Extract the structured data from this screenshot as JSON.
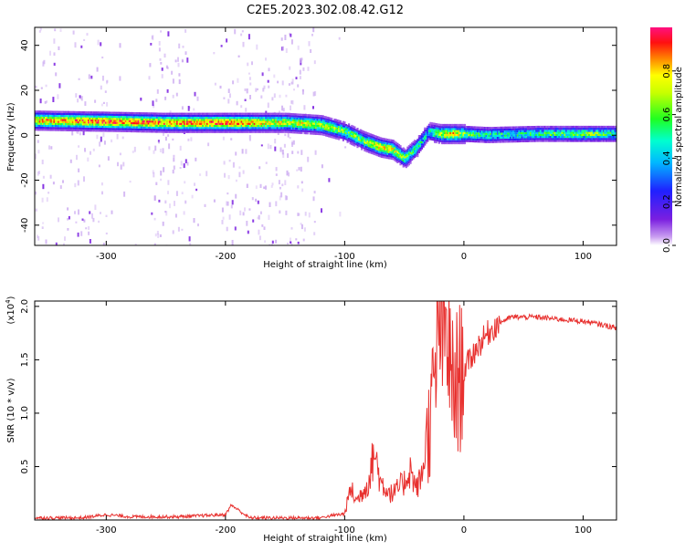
{
  "title": "C2E5.2023.302.08.42.G12",
  "spectrogram": {
    "xlabel": "Height of straight line (km)",
    "ylabel": "Frequency (Hz)",
    "x_ticks": [
      "-300",
      "-200",
      "-100",
      "0",
      "100"
    ],
    "y_ticks": [
      "40",
      "20",
      "0",
      "-20",
      "-40"
    ],
    "colorbar_label": "Normalized spectral amplitude",
    "colorbar_ticks": [
      "0.0",
      "0.2",
      "0.4",
      "0.6",
      "0.8"
    ]
  },
  "snr": {
    "xlabel": "Height of straight line (km)",
    "ylabel": "SNR (10 * v/v)",
    "scale_label": "(x10",
    "scale_exp": "4",
    "scale_close": ")",
    "x_ticks": [
      "-300",
      "-200",
      "-100",
      "0",
      "100"
    ],
    "y_ticks": [
      "2.0",
      "1.5",
      "1.0",
      "0.5"
    ]
  },
  "colors": {
    "snr_line": "#e8312f",
    "scatter": "#9b59e0"
  },
  "chart_data": [
    {
      "type": "heatmap",
      "title": "C2E5.2023.302.08.42.G12",
      "xlabel": "Height of straight line (km)",
      "ylabel": "Frequency (Hz)",
      "xlim": [
        -360,
        128
      ],
      "ylim": [
        -49,
        48
      ],
      "colorbar": {
        "label": "Normalized spectral amplitude",
        "range": [
          0,
          1
        ],
        "colormap": "rainbow (violet-blue-cyan-green-yellow-red-magenta)"
      },
      "ridge": {
        "x": [
          -360,
          -300,
          -250,
          -200,
          -150,
          -120,
          -100,
          -85,
          -70,
          -60,
          -50,
          -40,
          -30,
          -20,
          -10,
          0,
          20,
          60,
          100,
          128
        ],
        "y_freq_hz": [
          7,
          6.5,
          6,
          6,
          6,
          5,
          2,
          -2,
          -5,
          -6,
          -10,
          -5,
          2,
          1,
          1,
          1,
          0.5,
          1,
          1,
          1
        ],
        "peak_amplitude": [
          0.8,
          0.9,
          0.85,
          0.9,
          0.7,
          0.7,
          0.6,
          0.6,
          0.8,
          0.7,
          0.6,
          0.5,
          0.4,
          0.7,
          0.8,
          0.6,
          0.5,
          0.5,
          0.6,
          0.5
        ]
      }
    },
    {
      "type": "line",
      "xlabel": "Height of straight line (km)",
      "ylabel": "SNR (10 * v/v)",
      "y_scale": "x10^4",
      "xlim": [
        -360,
        128
      ],
      "ylim": [
        0,
        2.05
      ],
      "x": [
        -360,
        -320,
        -300,
        -280,
        -240,
        -200,
        -195,
        -180,
        -150,
        -120,
        -100,
        -95,
        -90,
        -80,
        -75,
        -70,
        -60,
        -50,
        -45,
        -40,
        -35,
        -30,
        -25,
        -20,
        -18,
        -15,
        -12,
        -10,
        -5,
        0,
        5,
        10,
        20,
        30,
        40,
        60,
        80,
        100,
        110,
        128
      ],
      "y": [
        0.02,
        0.02,
        0.05,
        0.03,
        0.03,
        0.05,
        0.14,
        0.02,
        0.02,
        0.02,
        0.05,
        0.25,
        0.15,
        0.3,
        0.55,
        0.3,
        0.2,
        0.3,
        0.4,
        0.25,
        0.35,
        0.8,
        1.2,
        1.9,
        1.6,
        1.8,
        1.5,
        1.2,
        1.3,
        1.4,
        1.5,
        1.6,
        1.75,
        1.85,
        1.9,
        1.9,
        1.88,
        1.86,
        1.84,
        1.8
      ]
    }
  ]
}
